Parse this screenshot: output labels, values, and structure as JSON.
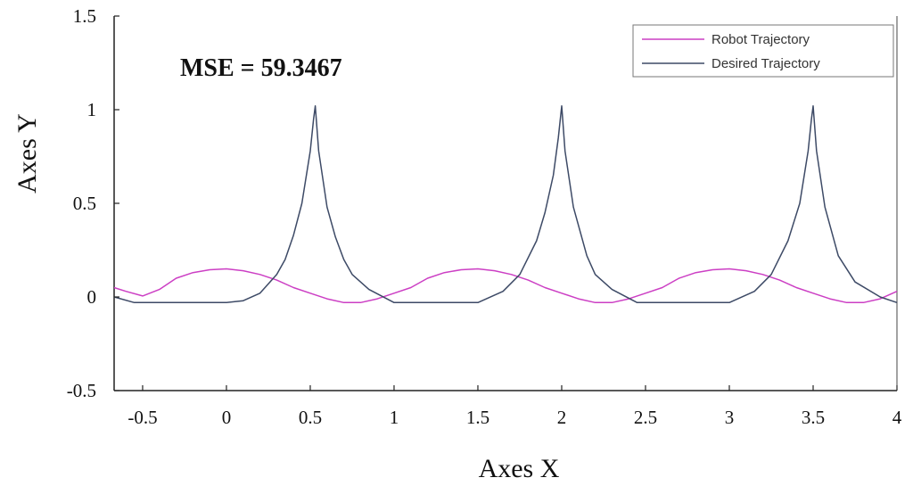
{
  "chart_data": {
    "type": "line",
    "xlabel": "Axes X",
    "ylabel": "Axes Y",
    "xlim": [
      -0.67,
      4.0
    ],
    "ylim": [
      -0.5,
      1.5
    ],
    "xticks": [
      "-0.5",
      "0",
      "0.5",
      "1",
      "1.5",
      "2",
      "2.5",
      "3",
      "3.5",
      "4"
    ],
    "xtick_values": [
      -0.5,
      0,
      0.5,
      1,
      1.5,
      2,
      2.5,
      3,
      3.5,
      4
    ],
    "yticks": [
      "1.5",
      "1",
      "0.5",
      "0",
      "-0.5"
    ],
    "ytick_values": [
      1.5,
      1.0,
      0.5,
      0.0,
      -0.5
    ],
    "grid": false,
    "legend_position": "top-right",
    "annotation": "MSE = 59.3467",
    "series": [
      {
        "name": "Robot Trajectory",
        "color": "#cc3fc4",
        "x": [
          -0.67,
          -0.6,
          -0.5,
          -0.4,
          -0.3,
          -0.2,
          -0.1,
          0.0,
          0.1,
          0.2,
          0.3,
          0.4,
          0.5,
          0.6,
          0.7,
          0.8,
          0.9,
          1.0,
          1.1,
          1.2,
          1.3,
          1.4,
          1.5,
          1.6,
          1.7,
          1.8,
          1.9,
          2.0,
          2.1,
          2.2,
          2.3,
          2.4,
          2.5,
          2.6,
          2.7,
          2.8,
          2.9,
          3.0,
          3.1,
          3.2,
          3.3,
          3.4,
          3.5,
          3.6,
          3.7,
          3.8,
          3.9,
          4.0
        ],
        "y": [
          0.05,
          0.03,
          0.005,
          0.04,
          0.1,
          0.13,
          0.145,
          0.15,
          0.14,
          0.12,
          0.09,
          0.05,
          0.02,
          -0.01,
          -0.03,
          -0.03,
          -0.01,
          0.02,
          0.05,
          0.1,
          0.13,
          0.145,
          0.15,
          0.14,
          0.12,
          0.09,
          0.05,
          0.02,
          -0.01,
          -0.03,
          -0.03,
          -0.01,
          0.02,
          0.05,
          0.1,
          0.13,
          0.145,
          0.15,
          0.14,
          0.12,
          0.09,
          0.05,
          0.02,
          -0.01,
          -0.03,
          -0.03,
          -0.01,
          0.03
        ]
      },
      {
        "name": "Desired Trajectory",
        "color": "#3d4a66",
        "x": [
          -0.67,
          -0.55,
          -0.45,
          -0.3,
          -0.15,
          0.0,
          0.1,
          0.2,
          0.3,
          0.35,
          0.4,
          0.45,
          0.5,
          0.52,
          0.53,
          0.55,
          0.6,
          0.65,
          0.7,
          0.75,
          0.85,
          1.0,
          1.1,
          1.3,
          1.5,
          1.65,
          1.75,
          1.85,
          1.9,
          1.95,
          1.98,
          2.0,
          2.02,
          2.07,
          2.15,
          2.2,
          2.3,
          2.45,
          2.6,
          2.8,
          3.0,
          3.15,
          3.25,
          3.35,
          3.42,
          3.47,
          3.49,
          3.5,
          3.52,
          3.57,
          3.65,
          3.75,
          3.9,
          4.0
        ],
        "y": [
          0.0,
          -0.03,
          -0.03,
          -0.03,
          -0.03,
          -0.03,
          -0.02,
          0.02,
          0.12,
          0.2,
          0.33,
          0.5,
          0.78,
          0.95,
          1.02,
          0.78,
          0.48,
          0.32,
          0.2,
          0.12,
          0.04,
          -0.03,
          -0.03,
          -0.03,
          -0.03,
          0.03,
          0.12,
          0.3,
          0.45,
          0.65,
          0.85,
          1.02,
          0.78,
          0.48,
          0.22,
          0.12,
          0.04,
          -0.03,
          -0.03,
          -0.03,
          -0.03,
          0.03,
          0.12,
          0.3,
          0.5,
          0.78,
          0.95,
          1.02,
          0.78,
          0.48,
          0.22,
          0.08,
          0.0,
          -0.03
        ]
      }
    ]
  }
}
